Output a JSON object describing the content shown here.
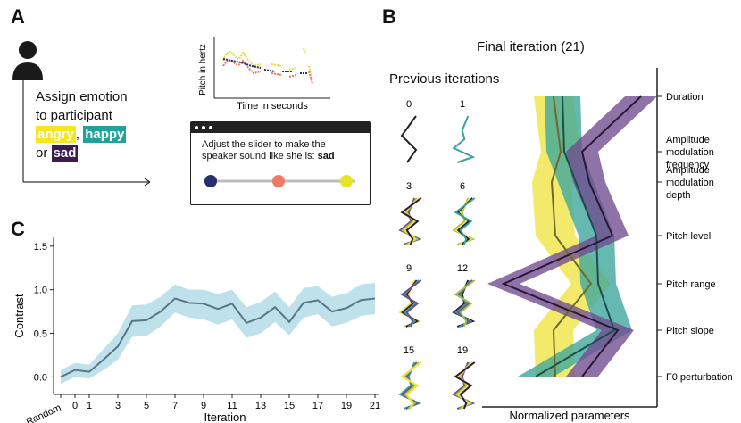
{
  "panels": {
    "a": "A",
    "b": "B",
    "c": "C"
  },
  "panel_a": {
    "assign_line1": "Assign emotion",
    "assign_line2": "to participant",
    "emotions": [
      {
        "label": "angry",
        "color": "#f5e61e"
      },
      {
        "label": "happy",
        "color": "#22a39a"
      },
      {
        "label": "sad",
        "color": "#3d1a4f"
      }
    ],
    "comma": ",",
    "or_word": "or",
    "pitch_ylabel": "Pitch in hertz",
    "pitch_xlabel": "Time in seconds",
    "slider_text": "Adjust the slider to make the speaker sound like she is:",
    "slider_target": "sad",
    "slider_dot_colors": [
      "#26306a",
      "#f07a63",
      "#e8e22a"
    ]
  },
  "panel_b": {
    "title": "Final iteration (21)",
    "previous_label": "Previous iterations",
    "xlabel": "Normalized parameters",
    "small_iterations": [
      "0",
      "1",
      "3",
      "6",
      "9",
      "12",
      "15",
      "19"
    ],
    "parameters": [
      "Duration",
      "Amplitude\nmodulation\nfrequency",
      "Amplitude\nmodulation\ndepth",
      "Pitch level",
      "Pitch range",
      "Pitch slope",
      "F0 perturbation"
    ],
    "series_colors": {
      "angry": "#f0e442",
      "happy": "#3ba59b",
      "sad": "#6f4a8e",
      "line_angry": "#6b6a2a",
      "line_happy": "#1f4d4a",
      "line_sad": "#2a1838"
    }
  },
  "chart_data": {
    "type": "line",
    "xlabel": "Iteration",
    "ylabel": "Contrast",
    "x_ticks": [
      "Random",
      "0",
      "1",
      "3",
      "5",
      "7",
      "9",
      "11",
      "13",
      "15",
      "17",
      "19",
      "21"
    ],
    "x": [
      "Random",
      "0",
      "1",
      "2",
      "3",
      "4",
      "5",
      "6",
      "7",
      "8",
      "9",
      "10",
      "11",
      "12",
      "13",
      "14",
      "15",
      "16",
      "17",
      "18",
      "19",
      "20",
      "21"
    ],
    "values": [
      0.0,
      0.08,
      0.06,
      0.2,
      0.35,
      0.64,
      0.65,
      0.75,
      0.9,
      0.85,
      0.84,
      0.78,
      0.84,
      0.62,
      0.68,
      0.8,
      0.63,
      0.85,
      0.88,
      0.75,
      0.79,
      0.88,
      0.9
    ],
    "ci_low": [
      -0.08,
      0.0,
      -0.02,
      0.08,
      0.2,
      0.46,
      0.47,
      0.58,
      0.74,
      0.68,
      0.66,
      0.6,
      0.66,
      0.45,
      0.5,
      0.63,
      0.48,
      0.68,
      0.72,
      0.58,
      0.62,
      0.7,
      0.72
    ],
    "ci_high": [
      0.08,
      0.16,
      0.14,
      0.32,
      0.5,
      0.82,
      0.83,
      0.92,
      1.06,
      1.0,
      1.0,
      0.95,
      1.0,
      0.8,
      0.86,
      0.98,
      0.8,
      1.02,
      1.04,
      0.92,
      0.96,
      1.06,
      1.08
    ],
    "y_ticks": [
      "0.0",
      "0.5",
      "1.0",
      "1.5"
    ],
    "ylim": [
      -0.2,
      1.6
    ],
    "line_color": "#5a7684",
    "band_color": "#bfe1ec"
  }
}
